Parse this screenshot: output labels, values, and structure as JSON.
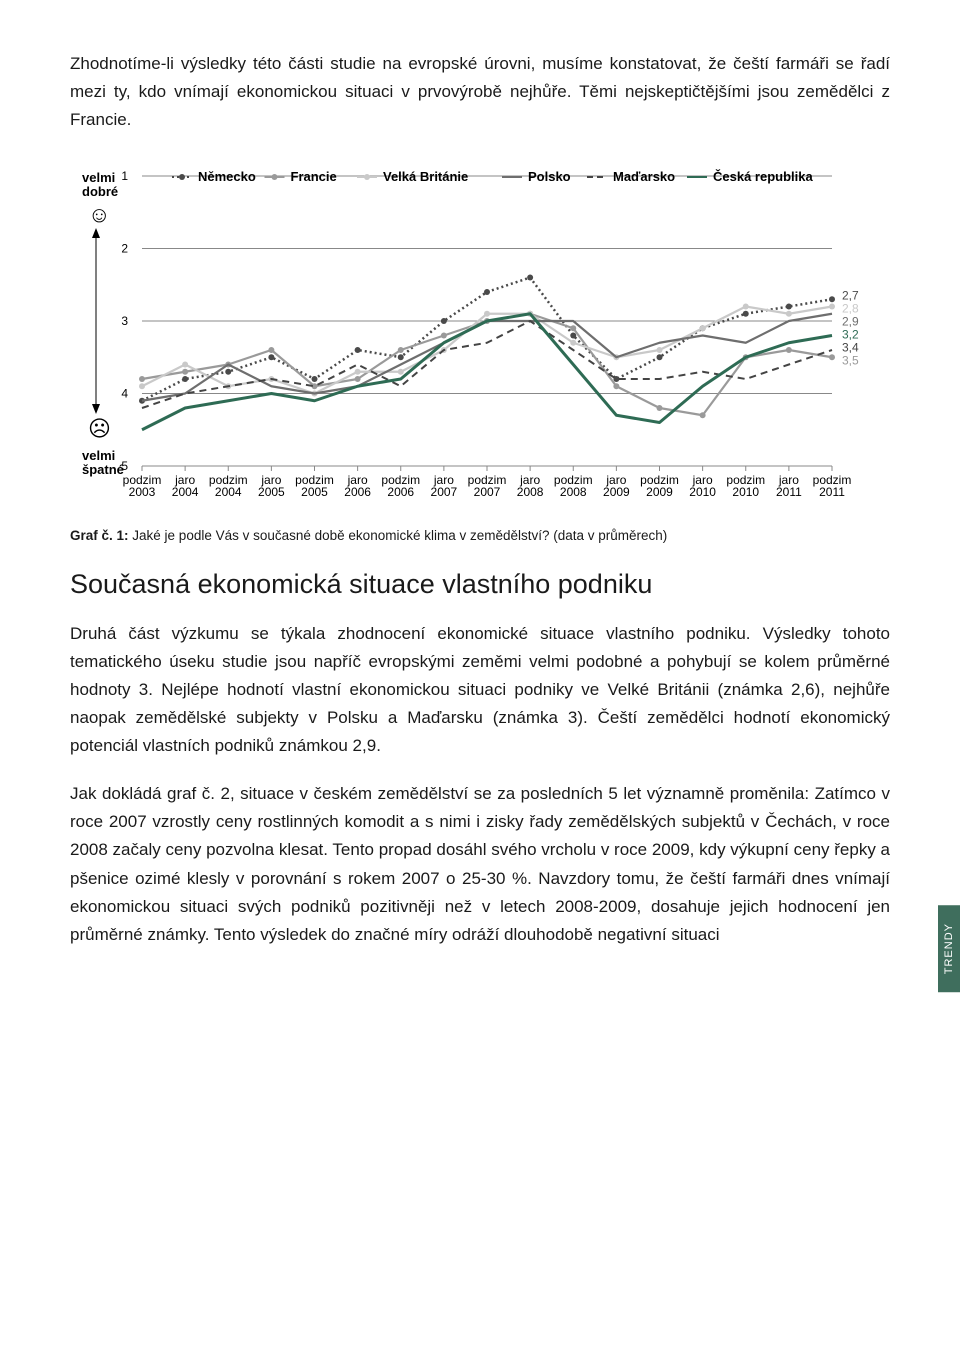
{
  "intro_paragraph": "Zhodnotíme-li výsledky této části studie na evropské úrovni, musíme konstatovat, že čeští farmáři se řadí mezi ty, kdo vnímají ekonomickou situaci v prvovýrobě nejhůře. Těmi nejskeptičtějšími jsou zemědělci z Francie.",
  "chart": {
    "type": "line",
    "y_axis_top_label": "velmi dobré",
    "y_axis_bottom_label": "velmi špatné",
    "face_top": "☺",
    "face_bottom": "☹",
    "ylim": [
      1,
      5
    ],
    "y_ticks": [
      1,
      2,
      3,
      4,
      5
    ],
    "x_labels": [
      "podzim 2003",
      "jaro 2004",
      "podzim 2004",
      "jaro 2005",
      "podzim 2005",
      "jaro 2006",
      "podzim 2006",
      "jaro 2007",
      "podzim 2007",
      "jaro 2008",
      "podzim 2008",
      "jaro 2009",
      "podzim 2009",
      "jaro 2010",
      "podzim 2010",
      "jaro 2011",
      "podzim 2011"
    ],
    "grid_color": "#888888",
    "background_color": "#ffffff",
    "legend": [
      {
        "name": "Německo",
        "color": "#4a4a4a",
        "style": "dotted",
        "marker": "circle"
      },
      {
        "name": "Francie",
        "color": "#9a9a9a",
        "style": "solid",
        "marker": "circle"
      },
      {
        "name": "Velká Británie",
        "color": "#c9c9c9",
        "style": "solid",
        "marker": "circle"
      },
      {
        "name": "Polsko",
        "color": "#6e6e6e",
        "style": "solid",
        "marker": "none"
      },
      {
        "name": "Maďarsko",
        "color": "#444444",
        "style": "dashed",
        "marker": "none"
      },
      {
        "name": "Česká republika",
        "color": "#2e6b54",
        "style": "solid",
        "marker": "none"
      }
    ],
    "series": {
      "de": [
        4.1,
        3.8,
        3.7,
        3.5,
        3.8,
        3.4,
        3.5,
        3.0,
        2.6,
        2.4,
        3.2,
        3.8,
        3.5,
        3.1,
        2.9,
        2.8,
        2.7
      ],
      "fr": [
        3.8,
        3.7,
        3.6,
        3.4,
        3.9,
        3.8,
        3.4,
        3.2,
        3.0,
        2.9,
        3.1,
        3.9,
        4.2,
        4.3,
        3.5,
        3.4,
        3.5
      ],
      "uk": [
        3.9,
        3.6,
        3.9,
        3.8,
        4.0,
        3.7,
        3.7,
        3.4,
        2.9,
        2.9,
        3.3,
        3.5,
        3.4,
        3.1,
        2.8,
        2.9,
        2.8
      ],
      "pl": [
        4.1,
        4.0,
        3.6,
        3.9,
        4.0,
        3.9,
        3.6,
        3.3,
        3.0,
        3.0,
        3.0,
        3.5,
        3.3,
        3.2,
        3.3,
        3.0,
        2.9
      ],
      "hu": [
        4.2,
        4.0,
        3.9,
        3.8,
        3.9,
        3.6,
        3.9,
        3.4,
        3.3,
        3.0,
        3.4,
        3.8,
        3.8,
        3.7,
        3.8,
        3.6,
        3.4
      ],
      "cz": [
        4.5,
        4.2,
        4.1,
        4.0,
        4.1,
        3.9,
        3.8,
        3.3,
        3.0,
        2.9,
        3.6,
        4.3,
        4.4,
        3.9,
        3.5,
        3.3,
        3.2
      ]
    },
    "end_labels": [
      {
        "value": "2,7",
        "color": "#4a4a4a"
      },
      {
        "value": "2,8",
        "color": "#c9c9c9"
      },
      {
        "value": "2,9",
        "color": "#6e6e6e"
      },
      {
        "value": "3,2",
        "color": "#2e6b54"
      },
      {
        "value": "3,4",
        "color": "#444444"
      },
      {
        "value": "3,5",
        "color": "#9a9a9a"
      }
    ]
  },
  "caption_bold": "Graf č. 1:",
  "caption_rest": " Jaké je podle Vás v současné době ekonomické klima v zemědělství? (data v průměrech)",
  "section_heading": "Současná ekonomická situace vlastního podniku",
  "para2": "Druhá část výzkumu se týkala zhodnocení ekonomické situace vlastního podniku. Výsledky tohoto tematického úseku studie jsou napříč evropskými zeměmi velmi podobné a pohybují se kolem průměrné hodnoty 3. Nejlépe hodnotí vlastní ekonomickou situaci podniky ve Velké Británii (známka 2,6), nejhůře naopak zemědělské subjekty v Polsku a Maďarsku (známka 3). Čeští zemědělci hodnotí ekonomický potenciál vlastních podniků známkou 2,9.",
  "para3": "Jak dokládá graf č. 2, situace v českém zemědělství se za posledních 5 let významně proměnila: Zatímco v roce 2007 vzrostly ceny rostlinných komodit a s nimi i zisky řady zemědělských subjektů v Čechách, v roce 2008 začaly ceny pozvolna klesat. Tento propad dosáhl svého vrcholu v roce 2009, kdy výkupní ceny řepky a pšenice ozimé klesly v porovnání s rokem 2007 o 25-30 %. Navzdory tomu, že čeští farmáři dnes vnímají ekonomickou situaci svých podniků pozitivněji než v letech 2008-2009, dosahuje jejich hodnocení jen průměrné známky. Tento výsledek do značné míry odráží dlouhodobě negativní situaci",
  "side_tab": "TRENDY"
}
